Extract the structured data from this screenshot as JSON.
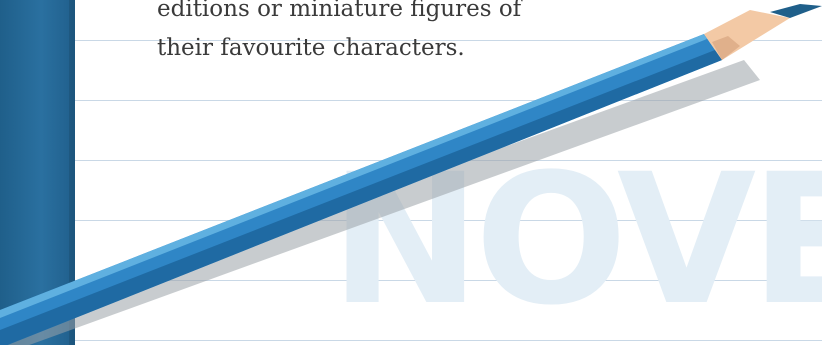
{
  "paragraph": {
    "line1": "editions or miniature figures of",
    "line2": "their favourite characters."
  },
  "watermark": {
    "text": "NOVELS"
  },
  "icons": {
    "pencil": "pencil-icon"
  },
  "colors": {
    "binder": "#2a70a0",
    "rule": "#c9d8e6",
    "pencil_body": "#2f86c6",
    "pencil_tip": "#1f5f8a",
    "pencil_wood": "#f3c9a5",
    "watermark": "#e3eef6",
    "text": "#3a3a3a"
  }
}
